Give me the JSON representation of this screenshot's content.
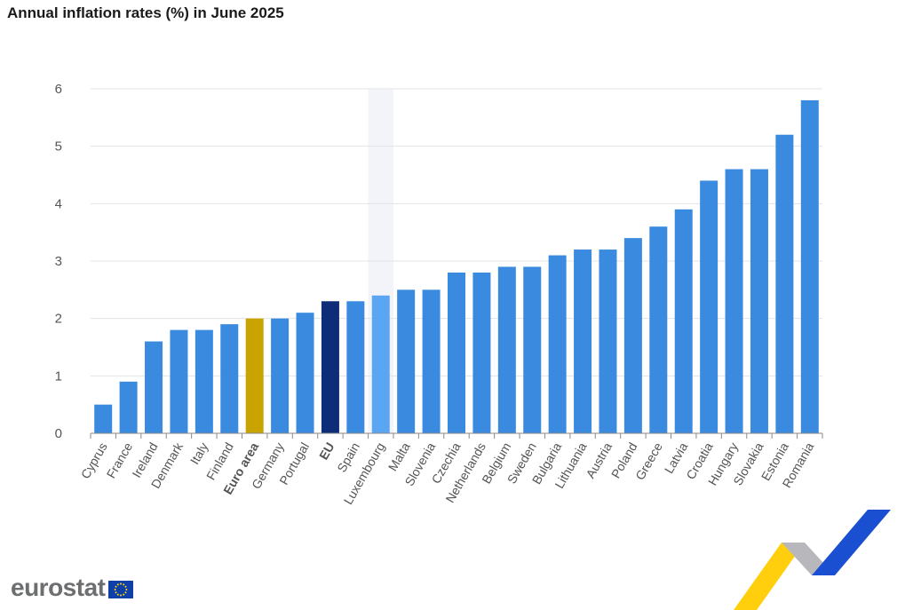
{
  "title": "Annual inflation rates (%) in June 2025",
  "branding": {
    "logo_text": "eurostat",
    "flag_icon": "eu-flag-icon"
  },
  "colors": {
    "default_bar": "#3a8be0",
    "euro_area_bar": "#c9a300",
    "eu_bar": "#0e2d78",
    "highlighted_bar": "#5aa6f2",
    "highlight_band": "#f3f4fa",
    "grid": "#e3e3e3",
    "axis_text": "#555555"
  },
  "chart_data": {
    "type": "bar",
    "title": "Annual inflation rates (%) in June 2025",
    "xlabel": "",
    "ylabel": "",
    "ylim": [
      0,
      6
    ],
    "yticks": [
      "0",
      "1",
      "2",
      "3",
      "4",
      "5",
      "6"
    ],
    "grid": true,
    "legend": "none",
    "categories": [
      "Cyprus",
      "France",
      "Ireland",
      "Denmark",
      "Italy",
      "Finland",
      "Euro area",
      "Germany",
      "Portugal",
      "EU",
      "Spain",
      "Luxembourg",
      "Malta",
      "Slovenia",
      "Czechia",
      "Netherlands",
      "Belgium",
      "Sweden",
      "Bulgaria",
      "Lithuania",
      "Austria",
      "Poland",
      "Greece",
      "Latvia",
      "Croatia",
      "Hungary",
      "Slovakia",
      "Estonia",
      "Romania"
    ],
    "values": [
      0.5,
      0.9,
      1.6,
      1.8,
      1.8,
      1.9,
      2.0,
      2.0,
      2.1,
      2.3,
      2.3,
      2.4,
      2.5,
      2.5,
      2.8,
      2.8,
      2.9,
      2.9,
      3.1,
      3.2,
      3.2,
      3.4,
      3.6,
      3.9,
      4.4,
      4.6,
      4.6,
      5.2,
      5.8
    ],
    "bold_categories": [
      "Euro area",
      "EU"
    ],
    "highlighted_category": "Luxembourg"
  }
}
